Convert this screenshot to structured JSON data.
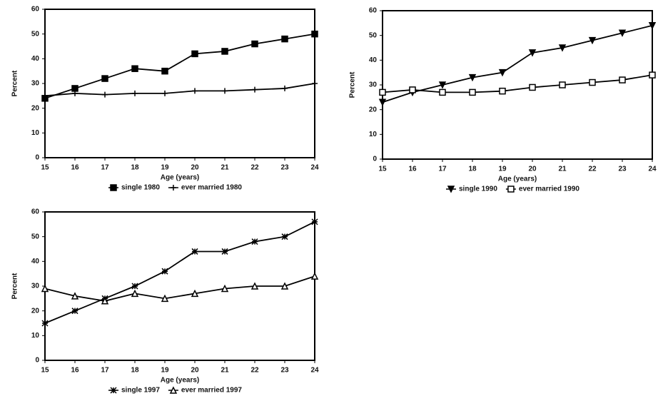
{
  "chart_data": [
    {
      "type": "line",
      "xlabel": "Age (years)",
      "ylabel": "Percent",
      "x": [
        15,
        16,
        17,
        18,
        19,
        20,
        21,
        22,
        23,
        24
      ],
      "xlim": [
        15,
        24
      ],
      "xticks": [
        15,
        16,
        17,
        18,
        19,
        20,
        21,
        22,
        23,
        24
      ],
      "ylim": [
        0,
        60
      ],
      "yticks": [
        0,
        10,
        20,
        30,
        40,
        50,
        60
      ],
      "series": [
        {
          "name": "single 1980",
          "color": "#000000",
          "marker": "square",
          "values": [
            24,
            28,
            32,
            36,
            35,
            42,
            43,
            46,
            48,
            50
          ]
        },
        {
          "name": "ever married 1980",
          "color": "#000000",
          "marker": "plus",
          "values": [
            25,
            26,
            25.5,
            26,
            26,
            27,
            27,
            27.5,
            28,
            30
          ]
        }
      ]
    },
    {
      "type": "line",
      "xlabel": "Age (years)",
      "ylabel": "Percent",
      "x": [
        15,
        16,
        17,
        18,
        19,
        20,
        21,
        22,
        23,
        24
      ],
      "xlim": [
        15,
        24
      ],
      "xticks": [
        15,
        16,
        17,
        18,
        19,
        20,
        21,
        22,
        23,
        24
      ],
      "ylim": [
        0,
        60
      ],
      "yticks": [
        0,
        10,
        20,
        30,
        40,
        50,
        60
      ],
      "series": [
        {
          "name": "single 1990",
          "color": "#000000",
          "marker": "triangle-down",
          "values": [
            23,
            27,
            30,
            33,
            35,
            43,
            45,
            48,
            51,
            54
          ]
        },
        {
          "name": "ever married 1990",
          "color": "#000000",
          "marker": "open-square",
          "values": [
            27,
            28,
            27,
            27,
            27.5,
            29,
            30,
            31,
            32,
            34
          ]
        }
      ]
    },
    {
      "type": "line",
      "xlabel": "Age (years)",
      "ylabel": "Percent",
      "x": [
        15,
        16,
        17,
        18,
        19,
        20,
        21,
        22,
        23,
        24
      ],
      "xlim": [
        15,
        24
      ],
      "xticks": [
        15,
        16,
        17,
        18,
        19,
        20,
        21,
        22,
        23,
        24
      ],
      "ylim": [
        0,
        60
      ],
      "yticks": [
        0,
        10,
        20,
        30,
        40,
        50,
        60
      ],
      "series": [
        {
          "name": "single 1997",
          "color": "#000000",
          "marker": "star",
          "values": [
            15,
            20,
            25,
            30,
            36,
            44,
            44,
            48,
            50,
            56
          ]
        },
        {
          "name": "ever married 1997",
          "color": "#000000",
          "marker": "open-triangle",
          "values": [
            29,
            26,
            24,
            27,
            25,
            27,
            29,
            30,
            30,
            34
          ]
        }
      ]
    }
  ]
}
